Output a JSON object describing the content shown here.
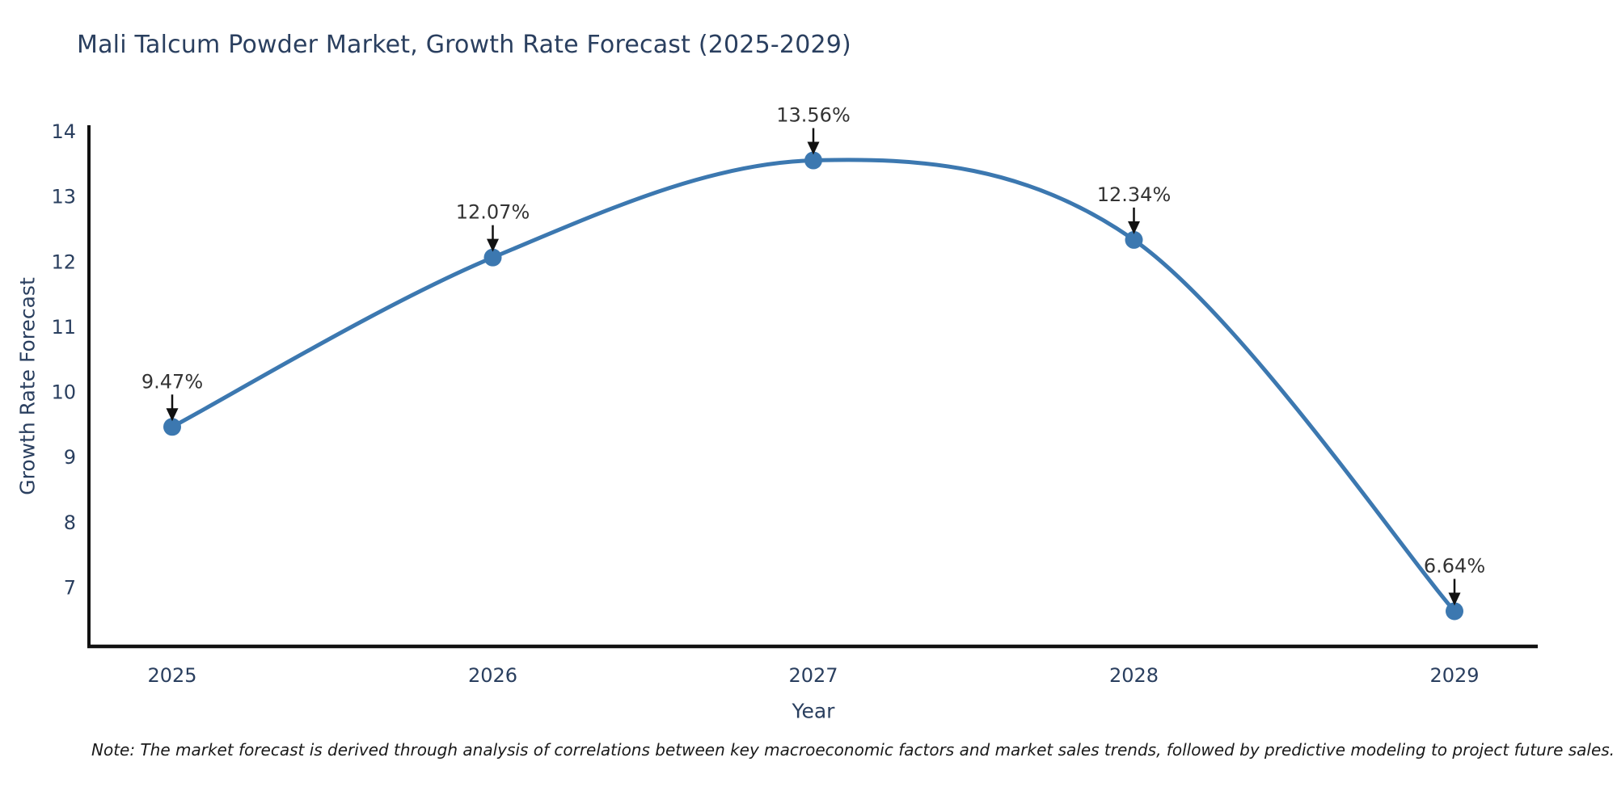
{
  "note": "Note: The market forecast is derived through analysis of correlations between key macroeconomic factors and market sales trends, followed by predictive modeling to project future sales.",
  "chart_data": {
    "type": "line",
    "title": "Mali Talcum Powder Market, Growth Rate Forecast (2025-2029)",
    "xlabel": "Year",
    "ylabel": "Growth Rate Forecast",
    "categories": [
      "2025",
      "2026",
      "2027",
      "2028",
      "2029"
    ],
    "series": [
      {
        "name": "Growth Rate Forecast",
        "values": [
          9.47,
          12.07,
          13.56,
          12.34,
          6.64
        ]
      }
    ],
    "point_labels": [
      "9.47%",
      "12.07%",
      "13.56%",
      "12.34%",
      "6.64%"
    ],
    "yticks": [
      7,
      8,
      9,
      10,
      11,
      12,
      13,
      14
    ],
    "ylim": [
      6.1,
      14.1
    ],
    "grid": false,
    "legend": "none",
    "line_shape": "spline",
    "colors": {
      "line": "#3c78b0",
      "marker": "#3c78b0",
      "axis": "#111111",
      "arrow": "#111111",
      "tick_text": "#2a3f5f",
      "annotation_text": "#333333",
      "title_text": "#2a3f5f"
    }
  }
}
